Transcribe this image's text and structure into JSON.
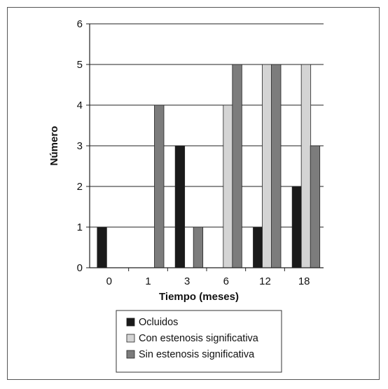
{
  "chart_data": {
    "type": "bar",
    "title": "",
    "xlabel": "Tiempo (meses)",
    "ylabel": "Número",
    "categories": [
      "0",
      "1",
      "3",
      "6",
      "12",
      "18"
    ],
    "ylim": [
      0,
      6
    ],
    "yticks": [
      "0",
      "1",
      "2",
      "3",
      "4",
      "5",
      "6"
    ],
    "grid": true,
    "legend_position": "bottom",
    "series": [
      {
        "name": "Ocluidos",
        "color": "#1a1a1a",
        "values": [
          1,
          0,
          3,
          0,
          1,
          2
        ]
      },
      {
        "name": "Con estenosis significativa",
        "color": "#d4d4d4",
        "values": [
          0,
          0,
          0,
          4,
          5,
          5
        ]
      },
      {
        "name": "Sin estenosis significativa",
        "color": "#7c7c7c",
        "values": [
          0,
          4,
          1,
          5,
          5,
          3
        ]
      }
    ]
  }
}
